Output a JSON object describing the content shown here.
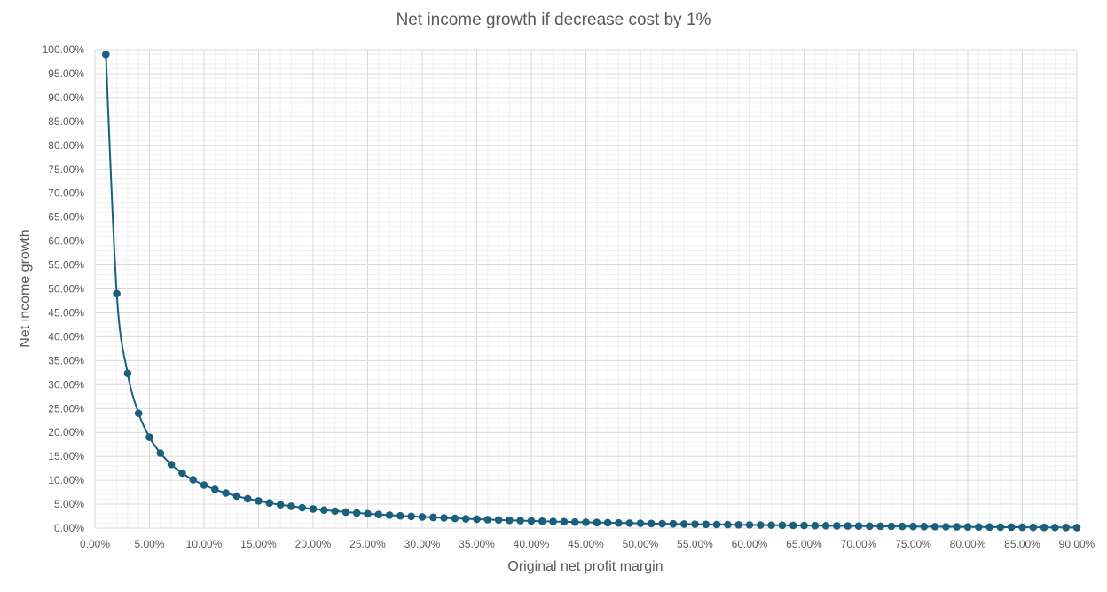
{
  "chart_data": {
    "type": "scatter",
    "title": "Net income growth if decrease cost by 1%",
    "xlabel": "Original net profit margin",
    "ylabel": "Net income growth",
    "xlim": [
      0,
      0.9
    ],
    "ylim": [
      0,
      1.0
    ],
    "x_ticks": [
      "0.00%",
      "5.00%",
      "10.00%",
      "15.00%",
      "20.00%",
      "25.00%",
      "30.00%",
      "35.00%",
      "40.00%",
      "45.00%",
      "50.00%",
      "55.00%",
      "60.00%",
      "65.00%",
      "70.00%",
      "75.00%",
      "80.00%",
      "85.00%",
      "90.00%"
    ],
    "y_ticks": [
      "0.00%",
      "5.00%",
      "10.00%",
      "15.00%",
      "20.00%",
      "25.00%",
      "30.00%",
      "35.00%",
      "40.00%",
      "45.00%",
      "50.00%",
      "55.00%",
      "60.00%",
      "65.00%",
      "70.00%",
      "75.00%",
      "80.00%",
      "85.00%",
      "90.00%",
      "95.00%",
      "100.00%"
    ],
    "grid": true,
    "minor_grid": true,
    "line_color": "#1b5f7e",
    "marker": "circle",
    "legend": "none",
    "series": [
      {
        "x": [
          0.01,
          0.02,
          0.03,
          0.04,
          0.05,
          0.06,
          0.07,
          0.08,
          0.09,
          0.1,
          0.11,
          0.12,
          0.13,
          0.14,
          0.15,
          0.16,
          0.17,
          0.18,
          0.19,
          0.2,
          0.21,
          0.22,
          0.23,
          0.24,
          0.25,
          0.26,
          0.27,
          0.28,
          0.29,
          0.3,
          0.31,
          0.32,
          0.33,
          0.34,
          0.35,
          0.36,
          0.37,
          0.38,
          0.39,
          0.4,
          0.41,
          0.42,
          0.43,
          0.44,
          0.45,
          0.46,
          0.47,
          0.48,
          0.49,
          0.5,
          0.51,
          0.52,
          0.53,
          0.54,
          0.55,
          0.56,
          0.57,
          0.58,
          0.59,
          0.6,
          0.61,
          0.62,
          0.63,
          0.64,
          0.65,
          0.66,
          0.67,
          0.68,
          0.69,
          0.7,
          0.71,
          0.72,
          0.73,
          0.74,
          0.75,
          0.76,
          0.77,
          0.78,
          0.79,
          0.8,
          0.81,
          0.82,
          0.83,
          0.84,
          0.85,
          0.86,
          0.87,
          0.88,
          0.89,
          0.9
        ],
        "y": [
          0.99,
          0.49,
          0.3233,
          0.24,
          0.19,
          0.1567,
          0.1329,
          0.115,
          0.1011,
          0.09,
          0.0809,
          0.0733,
          0.0669,
          0.0614,
          0.0567,
          0.0525,
          0.0488,
          0.0456,
          0.0426,
          0.04,
          0.0376,
          0.0355,
          0.0335,
          0.0317,
          0.03,
          0.0285,
          0.027,
          0.0257,
          0.0245,
          0.0233,
          0.0223,
          0.0213,
          0.0203,
          0.0194,
          0.0186,
          0.0178,
          0.017,
          0.0163,
          0.0156,
          0.015,
          0.0144,
          0.0138,
          0.0133,
          0.0127,
          0.0122,
          0.0117,
          0.0113,
          0.0108,
          0.0104,
          0.01,
          0.0096,
          0.0092,
          0.0089,
          0.0085,
          0.0082,
          0.0079,
          0.0075,
          0.0072,
          0.0069,
          0.0067,
          0.0064,
          0.0061,
          0.0059,
          0.0056,
          0.0054,
          0.0052,
          0.0049,
          0.0047,
          0.0045,
          0.0043,
          0.0041,
          0.0039,
          0.0037,
          0.0035,
          0.0033,
          0.0032,
          0.003,
          0.0028,
          0.0027,
          0.0025,
          0.0023,
          0.0022,
          0.002,
          0.0019,
          0.0018,
          0.0016,
          0.0015,
          0.0014,
          0.0012,
          0.0011
        ]
      }
    ]
  }
}
